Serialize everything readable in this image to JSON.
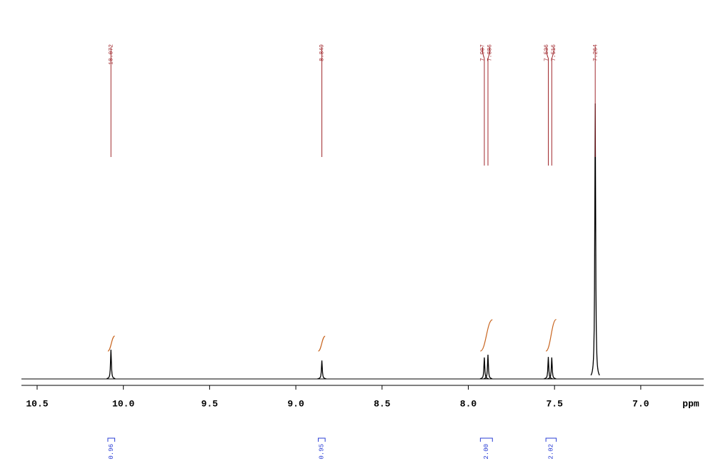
{
  "chart_data": {
    "type": "nmr",
    "x_label": "ppm",
    "xlim": [
      10.591,
      6.635
    ],
    "xticks": [
      10.5,
      {
        "value": 10,
        "label": "10.0"
      },
      9.5,
      {
        "value": 9,
        "label": "9.0"
      },
      8.5,
      {
        "value": 8,
        "label": "8.0"
      },
      7.5,
      {
        "value": 7,
        "label": "7.0"
      }
    ],
    "peaks": {
      "ppm": [
        10.072,
        8.849,
        7.907,
        7.886,
        7.536,
        7.516,
        7.264
      ],
      "intensity": [
        10.6,
        6.7,
        7.8,
        8.8,
        8.0,
        7.8,
        100
      ]
    },
    "integrals": {
      "from": [
        10.09,
        8.87,
        7.93,
        7.55
      ],
      "to": [
        10.05,
        8.83,
        7.86,
        7.49
      ],
      "values": [
        0.96,
        0.95,
        2,
        2.02
      ],
      "value_labels": [
        "0.96",
        "0.95",
        "2.00",
        "2.02"
      ]
    }
  }
}
